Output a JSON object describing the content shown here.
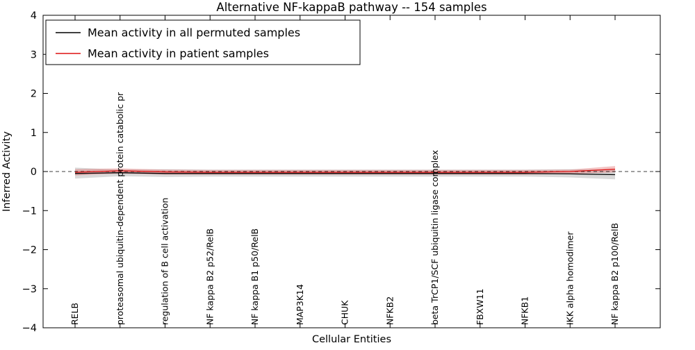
{
  "chart_data": {
    "type": "line",
    "title": "Alternative NF-kappaB pathway -- 154 samples",
    "xlabel": "Cellular Entities",
    "ylabel": "Inferred Activity",
    "ylim": [
      -4,
      4
    ],
    "yticks": [
      -4,
      -3,
      -2,
      -1,
      0,
      1,
      2,
      3,
      4
    ],
    "grid": false,
    "zero_line": true,
    "legend_position": "upper left",
    "categories": [
      "RELB",
      "proteasomal ubiquitin-dependent protein catabolic pr",
      "regulation of B cell activation",
      "NF kappa B2 p52/RelB",
      "NF kappa B1 p50/RelB",
      "MAP3K14",
      "CHUK",
      "NFKB2",
      "beta TrCP1/SCF ubiquitin ligase complex",
      "FBXW11",
      "NFKB1",
      "IKK alpha homodimer",
      "NF kappa B2 p100/RelB"
    ],
    "series": [
      {
        "name": "Mean activity in all permuted samples",
        "color": "#000000",
        "band_color": "#aaaaaa",
        "band_opacity": 0.45,
        "values": [
          -0.05,
          -0.03,
          -0.05,
          -0.05,
          -0.05,
          -0.05,
          -0.05,
          -0.05,
          -0.05,
          -0.05,
          -0.05,
          -0.06,
          -0.08
        ],
        "band_upper": [
          0.1,
          0.05,
          0.06,
          0.05,
          0.05,
          0.05,
          0.05,
          0.05,
          0.05,
          0.05,
          0.05,
          0.06,
          0.05
        ],
        "band_lower": [
          -0.18,
          -0.12,
          -0.14,
          -0.13,
          -0.13,
          -0.13,
          -0.13,
          -0.13,
          -0.13,
          -0.13,
          -0.13,
          -0.15,
          -0.2
        ]
      },
      {
        "name": "Mean activity in patient samples",
        "color": "#dd1111",
        "band_color": "#e06666",
        "band_opacity": 0.4,
        "values": [
          -0.02,
          0.02,
          -0.01,
          -0.02,
          -0.02,
          -0.02,
          -0.02,
          -0.02,
          -0.02,
          -0.02,
          -0.02,
          0.0,
          0.06
        ],
        "band_upper": [
          0.06,
          0.08,
          0.05,
          0.04,
          0.04,
          0.04,
          0.04,
          0.04,
          0.04,
          0.04,
          0.04,
          0.05,
          0.14
        ],
        "band_lower": [
          -0.1,
          -0.05,
          -0.08,
          -0.08,
          -0.08,
          -0.08,
          -0.08,
          -0.08,
          -0.08,
          -0.08,
          -0.08,
          -0.06,
          -0.02
        ]
      }
    ]
  }
}
